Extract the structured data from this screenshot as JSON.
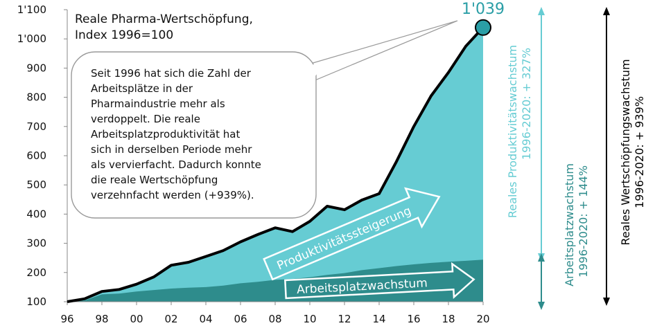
{
  "chart_data": {
    "type": "area",
    "title_lines": [
      "Reale Pharma-Wertschöpfung,",
      "Index 1996=100"
    ],
    "xlabel": "",
    "ylabel": "",
    "ylim": [
      100,
      1100
    ],
    "yticks": [
      100,
      200,
      300,
      400,
      500,
      600,
      700,
      800,
      900,
      1000,
      1100
    ],
    "ytick_labels": [
      "100",
      "200",
      "300",
      "400",
      "500",
      "600",
      "700",
      "800",
      "900",
      "1'000",
      "1'100"
    ],
    "xlim": [
      1996,
      2020
    ],
    "xticks": [
      1996,
      1998,
      2000,
      2002,
      2004,
      2006,
      2008,
      2010,
      2012,
      2014,
      2016,
      2018,
      2020
    ],
    "xtick_labels": [
      "96",
      "98",
      "00",
      "02",
      "04",
      "06",
      "08",
      "10",
      "12",
      "14",
      "16",
      "18",
      "20"
    ],
    "x": [
      1996,
      1997,
      1998,
      1999,
      2000,
      2001,
      2002,
      2003,
      2004,
      2005,
      2006,
      2007,
      2008,
      2009,
      2010,
      2011,
      2012,
      2013,
      2014,
      2015,
      2016,
      2017,
      2018,
      2019,
      2020
    ],
    "series": [
      {
        "role": "total",
        "values": [
          100,
          110,
          135,
          142,
          160,
          185,
          225,
          235,
          255,
          275,
          305,
          330,
          353,
          340,
          375,
          427,
          415,
          448,
          470,
          580,
          700,
          805,
          885,
          975,
          1039
        ],
        "color": "#000000"
      },
      {
        "role": "productivity-area",
        "values": [
          100,
          110,
          135,
          142,
          160,
          185,
          225,
          235,
          255,
          275,
          305,
          330,
          353,
          340,
          375,
          427,
          415,
          448,
          470,
          580,
          700,
          805,
          885,
          975,
          1039
        ],
        "color": "#66ccd3"
      },
      {
        "role": "employment-area",
        "values": [
          100,
          104,
          125,
          128,
          135,
          140,
          145,
          148,
          150,
          155,
          163,
          168,
          175,
          178,
          184,
          192,
          198,
          208,
          215,
          222,
          228,
          233,
          237,
          240,
          244
        ],
        "color": "#2e8c8c"
      }
    ],
    "endpoint": {
      "x": 2020,
      "value": 1039,
      "label": "1'039",
      "color": "#2a9ea6"
    },
    "annotation_lines": [
      "Seit 1996 hat sich die Zahl der",
      "Arbeitsplätze in der",
      "Pharmaindustrie mehr als",
      "verdoppelt. Die reale",
      "Arbeitsplatzproduktivität hat",
      "sich in derselben Periode mehr",
      "als vervierfacht. Dadurch konnte",
      "die reale Wertschöpfung",
      "verzehnfacht werden (+939%)."
    ],
    "arrow_labels": {
      "productivity": "Produktivitätssteigerung",
      "employment": "Arbeitsplatzwachstum"
    },
    "side_labels": {
      "productivity": {
        "lines": [
          "Reales Produktivitätswachstum",
          "1996-2020: + 327%"
        ],
        "color": "#66ccd3"
      },
      "employment": {
        "lines": [
          "Arbeitsplatzwachstum",
          "1996-2020:  + 144%"
        ],
        "color": "#2e8c8c"
      },
      "total": {
        "lines": [
          "Reales Wertschöpfungswachstum",
          "1996-2020: + 939%"
        ],
        "color": "#000000"
      }
    }
  }
}
